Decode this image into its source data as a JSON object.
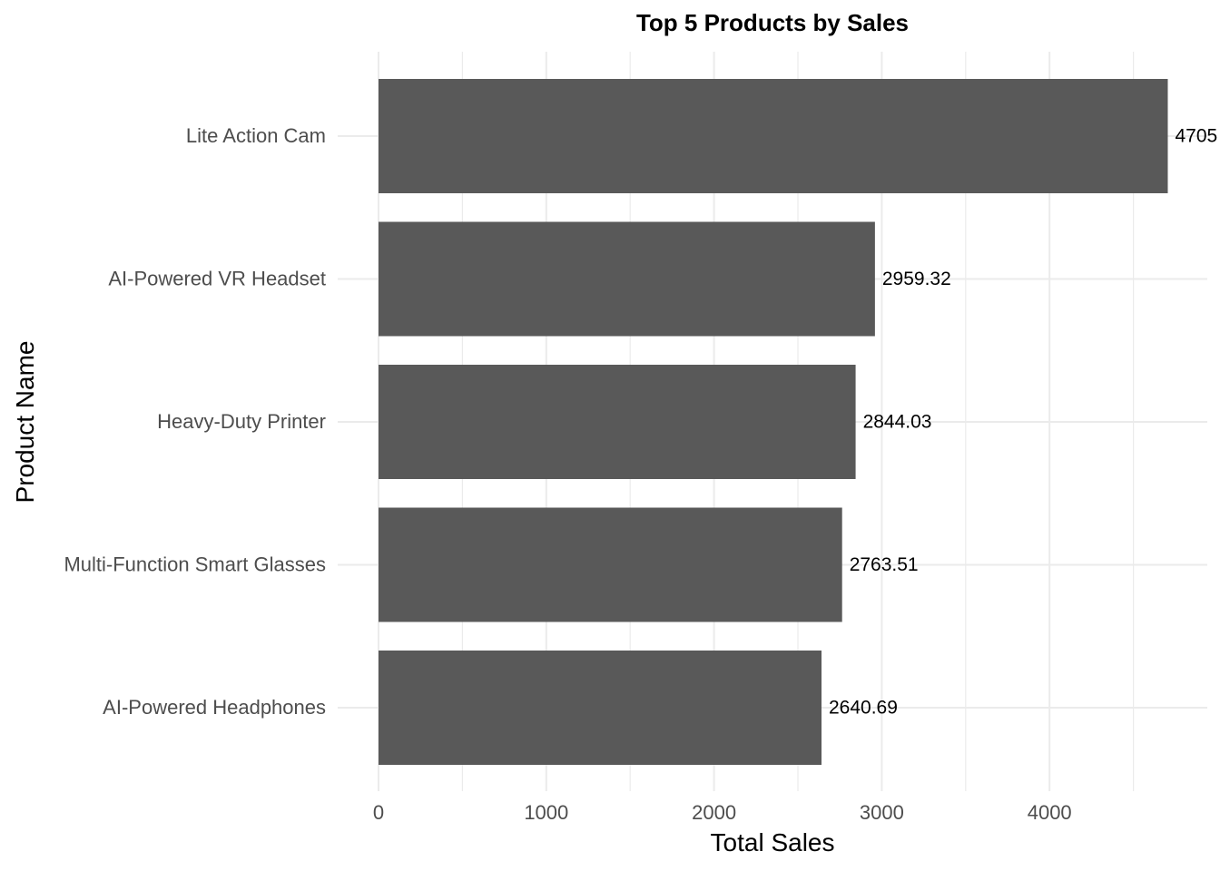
{
  "chart_data": {
    "type": "bar",
    "orientation": "horizontal",
    "title": "Top 5 Products by Sales",
    "xlabel": "Total Sales",
    "ylabel": "Product Name",
    "categories": [
      "Lite Action Cam",
      "AI-Powered VR Headset",
      "Heavy-Duty Printer",
      "Multi-Function Smart Glasses",
      "AI-Powered Headphones"
    ],
    "values": [
      4705,
      2959.32,
      2844.03,
      2763.51,
      2640.69
    ],
    "data_labels": [
      "4705",
      "2959.32",
      "2844.03",
      "2763.51",
      "2640.69"
    ],
    "x_ticks": [
      0,
      1000,
      2000,
      3000,
      4000
    ],
    "x_tick_labels": [
      "0",
      "1000",
      "2000",
      "3000",
      "4000"
    ],
    "xlim": [
      0,
      4940
    ],
    "grid": true,
    "legend": "none",
    "colors": {
      "bar": "#595959",
      "grid": "#ebebeb",
      "background": "#ffffff"
    }
  }
}
